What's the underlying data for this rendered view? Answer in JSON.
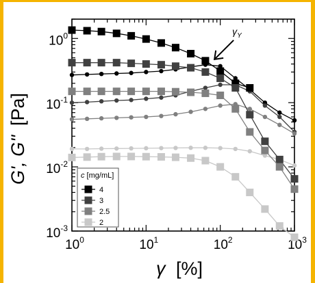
{
  "chart_data": {
    "type": "scatter",
    "xscale": "log",
    "yscale": "log",
    "xlim": [
      1,
      1000
    ],
    "ylim": [
      0.001,
      2
    ],
    "xlabel": {
      "symbol": "γ",
      "unit": "[%]"
    },
    "ylabel": {
      "main": "G', G''",
      "unit": "[Pa]"
    },
    "x_ticks": [
      {
        "base": "10",
        "exp": "0"
      },
      {
        "base": "10",
        "exp": "1"
      },
      {
        "base": "10",
        "exp": "2"
      },
      {
        "base": "10",
        "exp": "3"
      }
    ],
    "y_ticks": [
      {
        "base": "10",
        "exp": "-3"
      },
      {
        "base": "10",
        "exp": "-2"
      },
      {
        "base": "10",
        "exp": "-1"
      },
      {
        "base": "10",
        "exp": "0"
      }
    ],
    "legend": {
      "title": "c [mg/mL]",
      "placement": "bottom-left",
      "entries": [
        "4",
        "3",
        "2.5",
        "2"
      ]
    },
    "annotation": {
      "text": "γY",
      "x": 80,
      "y": 0.45
    },
    "accent_border": "#f5b400",
    "series": [
      {
        "name": "4",
        "modulus": "G'",
        "marker": "square",
        "color": "#000000",
        "x": [
          1,
          1.6,
          2.5,
          4,
          6.3,
          10,
          16,
          25,
          40,
          63,
          100,
          160,
          250
        ],
        "y": [
          1.35,
          1.32,
          1.28,
          1.2,
          1.1,
          0.98,
          0.85,
          0.72,
          0.58,
          0.45,
          0.31,
          0.2,
          0.17
        ]
      },
      {
        "name": "4",
        "modulus": "G''",
        "marker": "circle",
        "color": "#000000",
        "x": [
          1,
          1.6,
          2.5,
          4,
          6.3,
          10,
          16,
          25,
          40,
          63,
          100,
          160,
          250,
          400,
          630,
          1000
        ],
        "y": [
          0.27,
          0.275,
          0.28,
          0.285,
          0.29,
          0.3,
          0.31,
          0.33,
          0.36,
          0.39,
          0.37,
          0.24,
          0.16,
          0.1,
          0.07,
          0.053
        ]
      },
      {
        "name": "3",
        "modulus": "G'",
        "marker": "square",
        "color": "#404040",
        "x": [
          1,
          1.6,
          2.5,
          4,
          6.3,
          10,
          16,
          25,
          40,
          63,
          100,
          160,
          250,
          400,
          630,
          1000
        ],
        "y": [
          0.42,
          0.42,
          0.42,
          0.42,
          0.41,
          0.4,
          0.39,
          0.37,
          0.35,
          0.3,
          0.24,
          0.17,
          0.065,
          0.025,
          0.013,
          0.0065
        ]
      },
      {
        "name": "3",
        "modulus": "G''",
        "marker": "circle",
        "color": "#404040",
        "x": [
          1,
          1.6,
          2.5,
          4,
          6.3,
          10,
          16,
          25,
          40,
          63,
          100,
          160,
          250,
          400,
          630,
          1000
        ],
        "y": [
          0.1,
          0.102,
          0.105,
          0.108,
          0.11,
          0.115,
          0.12,
          0.13,
          0.15,
          0.17,
          0.19,
          0.19,
          0.15,
          0.09,
          0.06,
          0.035
        ]
      },
      {
        "name": "2.5",
        "modulus": "G'",
        "marker": "square",
        "color": "#808080",
        "x": [
          1,
          1.6,
          2.5,
          4,
          6.3,
          10,
          16,
          25,
          40,
          63,
          100,
          160,
          250,
          400,
          630,
          1000
        ],
        "y": [
          0.15,
          0.15,
          0.15,
          0.15,
          0.15,
          0.15,
          0.15,
          0.148,
          0.145,
          0.14,
          0.13,
          0.08,
          0.035,
          0.018,
          0.01,
          0.0045
        ]
      },
      {
        "name": "2.5",
        "modulus": "G''",
        "marker": "circle",
        "color": "#808080",
        "x": [
          1,
          1.6,
          2.5,
          4,
          6.3,
          10,
          16,
          25,
          40,
          63,
          100,
          160,
          250,
          400,
          630,
          1000
        ],
        "y": [
          0.055,
          0.056,
          0.057,
          0.058,
          0.059,
          0.06,
          0.062,
          0.066,
          0.072,
          0.08,
          0.09,
          0.095,
          0.08,
          0.06,
          0.045,
          0.033
        ]
      },
      {
        "name": "2",
        "modulus": "G'",
        "marker": "square",
        "color": "#c8c8c8",
        "x": [
          1,
          1.6,
          2.5,
          4,
          6.3,
          10,
          16,
          25,
          40,
          63,
          100,
          160,
          250,
          400,
          630,
          1000
        ],
        "y": [
          0.014,
          0.0142,
          0.0144,
          0.0145,
          0.0145,
          0.0144,
          0.0143,
          0.0141,
          0.0137,
          0.0125,
          0.01,
          0.007,
          0.004,
          0.0022,
          0.0012,
          0.0008
        ]
      },
      {
        "name": "2",
        "modulus": "G''",
        "marker": "circle",
        "color": "#c8c8c8",
        "x": [
          1,
          1.6,
          2.5,
          4,
          6.3,
          10,
          16,
          25,
          40,
          63,
          100,
          160,
          250,
          400,
          630,
          1000
        ],
        "y": [
          0.019,
          0.019,
          0.0192,
          0.0193,
          0.0194,
          0.0195,
          0.0196,
          0.0197,
          0.0198,
          0.0198,
          0.0196,
          0.019,
          0.0175,
          0.015,
          0.013,
          0.0105
        ]
      }
    ]
  }
}
